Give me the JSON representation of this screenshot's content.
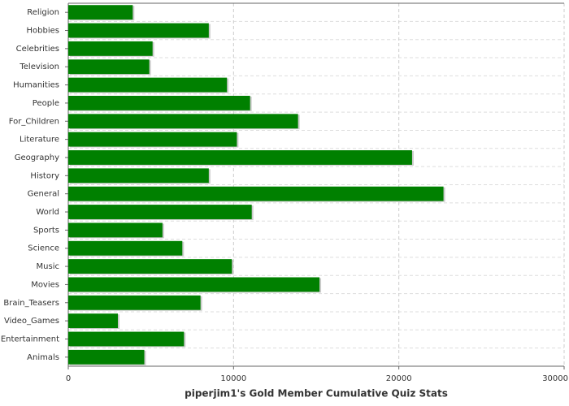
{
  "chart_data": {
    "type": "hbar",
    "title": "piperjim1's Gold Member Cumulative Quiz Stats",
    "categories": [
      "Religion",
      "Hobbies",
      "Celebrities",
      "Television",
      "Humanities",
      "People",
      "For_Children",
      "Literature",
      "Geography",
      "History",
      "General",
      "World",
      "Sports",
      "Science",
      "Music",
      "Movies",
      "Brain_Teasers",
      "Video_Games",
      "Entertainment",
      "Animals"
    ],
    "values": [
      3900,
      8500,
      5100,
      4900,
      9600,
      11000,
      13900,
      10200,
      20800,
      8500,
      22700,
      11100,
      5700,
      6900,
      9900,
      15200,
      8000,
      3000,
      7000,
      4600
    ],
    "color": "#008000",
    "xlim": [
      0,
      30000
    ],
    "xticks": [
      0,
      10000,
      20000,
      30000
    ],
    "grid": true
  }
}
